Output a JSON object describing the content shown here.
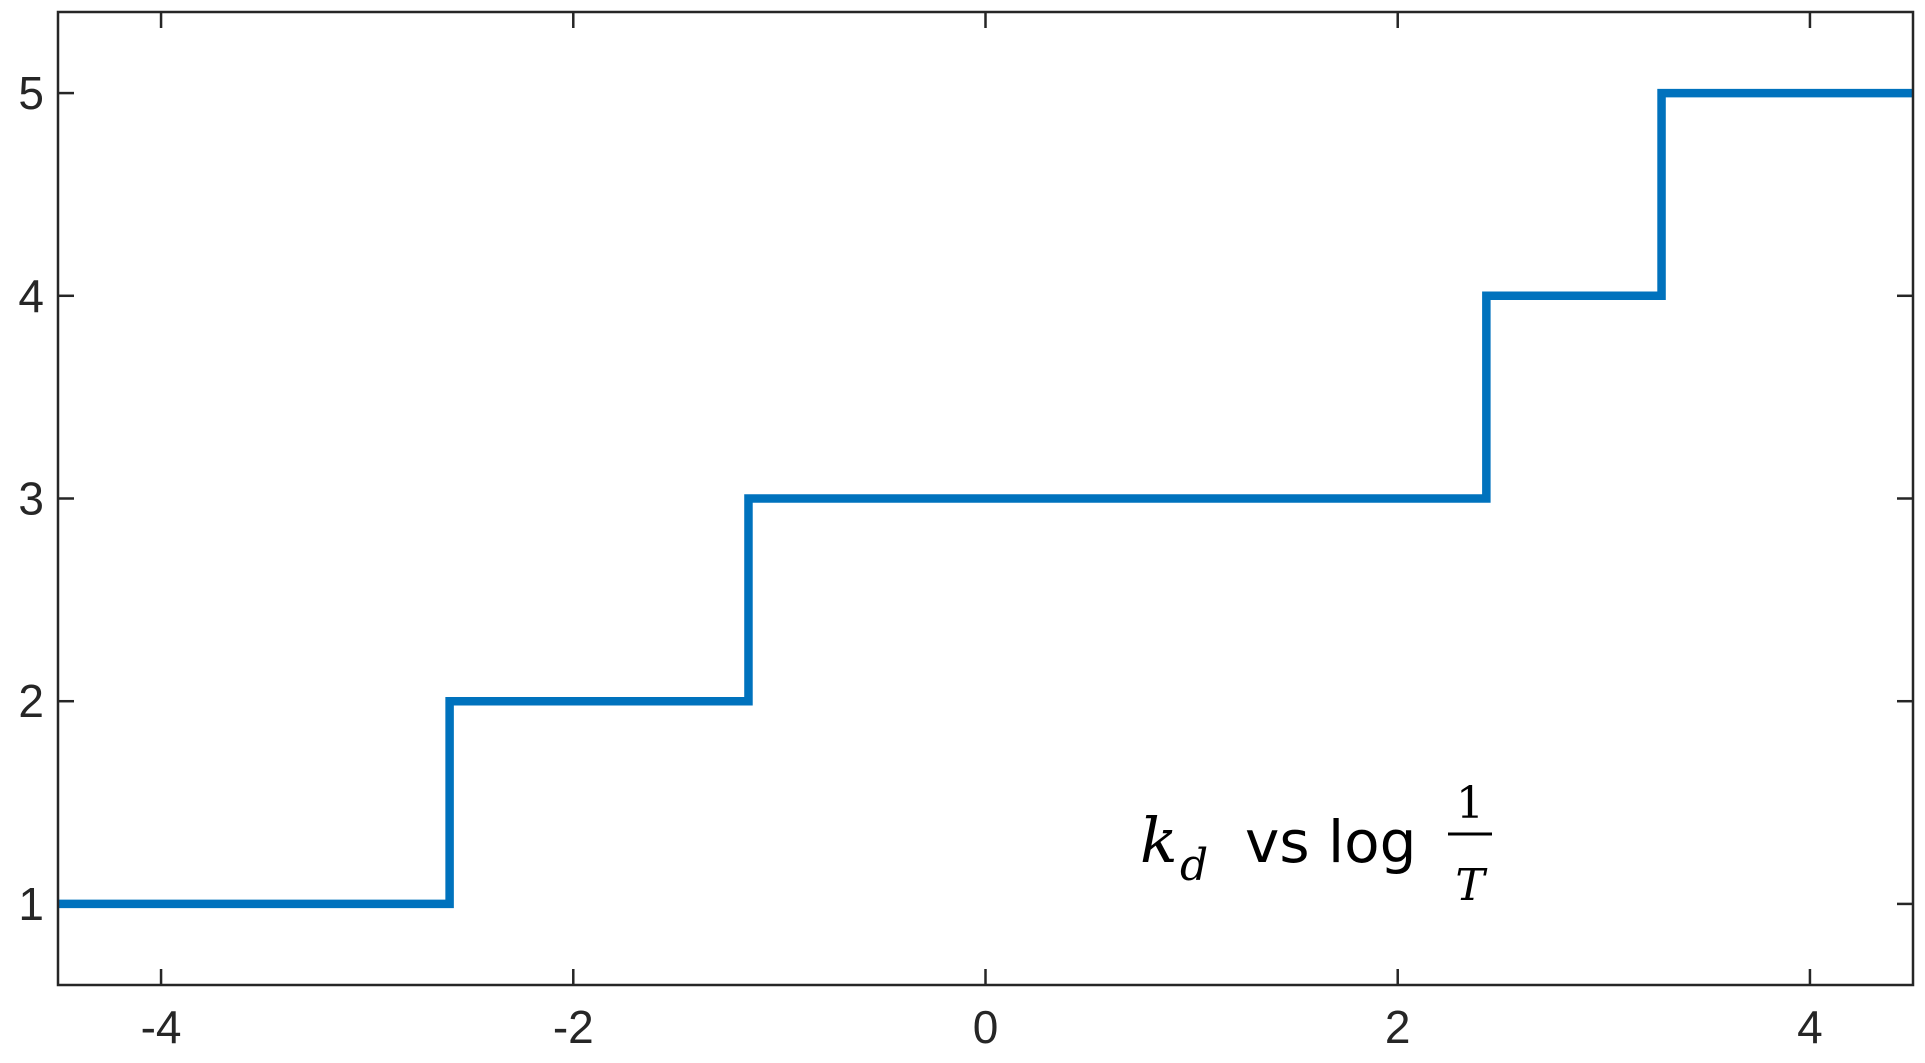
{
  "chart_data": {
    "type": "line",
    "x": [
      -4.5,
      -2.6,
      -2.6,
      -1.15,
      -1.15,
      2.43,
      2.43,
      3.28,
      3.28,
      4.5
    ],
    "series": [
      {
        "color": "#0072bd",
        "values": [
          1,
          1,
          2,
          2,
          3,
          3,
          4,
          4,
          5,
          5
        ]
      }
    ],
    "xlim": [
      -4.5,
      4.5
    ],
    "ylim": [
      0.6,
      5.4
    ],
    "xticks": [
      -4,
      -2,
      0,
      2,
      4
    ],
    "yticks": [
      1,
      2,
      3,
      4,
      5
    ],
    "annotation": {
      "variable": "k",
      "subscript": "d",
      "text": "vs log",
      "numerator": "1",
      "denominator": "T"
    }
  }
}
